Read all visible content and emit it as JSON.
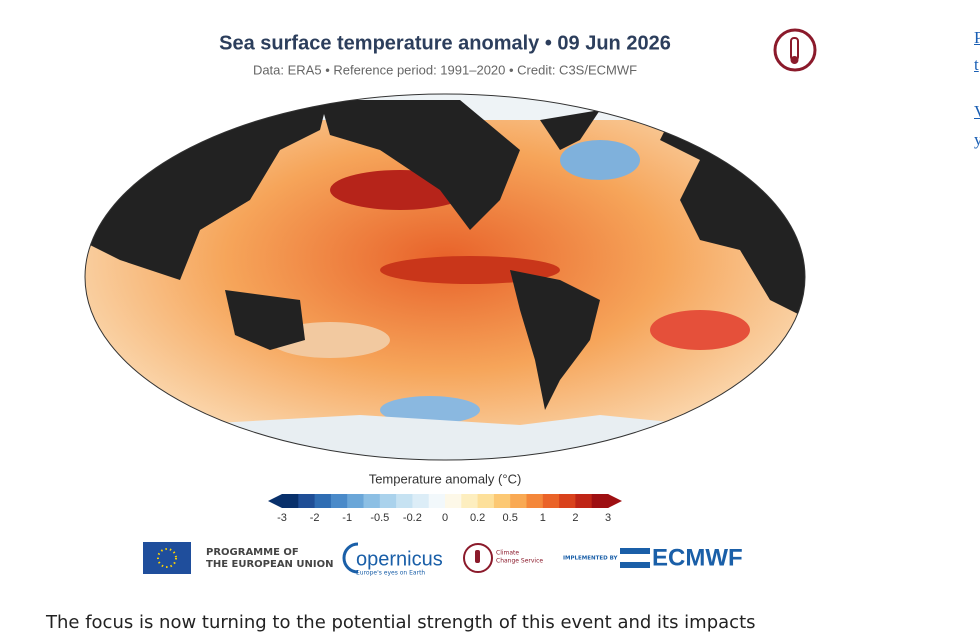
{
  "title": "Sea surface temperature anomaly • 09 Jun 2026",
  "subtitle": "Data: ERA5 • Reference period: 1991–2020 • Credit: C3S/ECMWF",
  "colorbar": {
    "title": "Temperature anomaly (°C)",
    "ticks": [
      -3,
      -2,
      -1,
      -0.5,
      -0.2,
      0,
      0.2,
      0.5,
      1,
      2,
      3
    ],
    "colors": [
      "#08306b",
      "#1f4e96",
      "#2f6db3",
      "#4a8ac9",
      "#6aa6d8",
      "#8cbfe4",
      "#aad2ec",
      "#c6e2f2",
      "#dcedf7",
      "#f2f8fb",
      "#fdf8e8",
      "#fdeebf",
      "#fde09a",
      "#fcc873",
      "#f9a953",
      "#f4873a",
      "#ea6328",
      "#d9421c",
      "#bf2516",
      "#9e0f12"
    ]
  },
  "logos": {
    "eu": [
      "PROGRAMME OF",
      "THE EUROPEAN UNION"
    ],
    "copernicus": "opernicus",
    "copernicus_tagline": "Europe's eyes on Earth",
    "c3s": [
      "Climate",
      "Change Service"
    ],
    "implemented": "IMPLEMENTED BY",
    "ecmwf": "ECMWF"
  },
  "side_links": [
    "P",
    "t",
    "V",
    "y"
  ],
  "body_text": "The focus is now turning to the potential strength of this event and its impacts"
}
